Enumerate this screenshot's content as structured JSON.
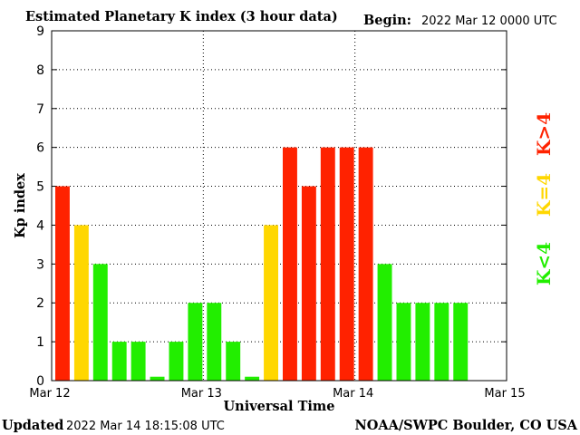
{
  "header": {
    "title": "Estimated Planetary K index (3 hour data)",
    "begin_label": "Begin:",
    "begin_value": "2022 Mar 12 0000 UTC"
  },
  "footer": {
    "updated_label": "Updated",
    "updated_value": "2022 Mar 14 18:15:08 UTC",
    "credit": "NOAA/SWPC Boulder, CO USA"
  },
  "legend": {
    "items": [
      {
        "label": "K<4",
        "color": "#22ee00"
      },
      {
        "label": "K=4",
        "color": "#ffd700"
      },
      {
        "label": "K>4",
        "color": "#ff2200"
      }
    ]
  },
  "chart_data": {
    "type": "bar",
    "ylabel": "Kp index",
    "xlabel": "Universal Time",
    "ylim": [
      0,
      9
    ],
    "yticks": [
      "0",
      "1",
      "2",
      "3",
      "4",
      "5",
      "6",
      "7",
      "8",
      "9"
    ],
    "x_tick_labels": [
      "Mar 12",
      "Mar 13",
      "Mar 14",
      "Mar 15"
    ],
    "bins_per_day": 8,
    "grid": true,
    "values": [
      5,
      4,
      3,
      1,
      1,
      0.1,
      1,
      2,
      2,
      1,
      0.1,
      4,
      6,
      5,
      6,
      6,
      6,
      3,
      2,
      2,
      2,
      2
    ],
    "colors": {
      "low": "#22ee00",
      "equal": "#ffd700",
      "high": "#ff2200"
    }
  }
}
